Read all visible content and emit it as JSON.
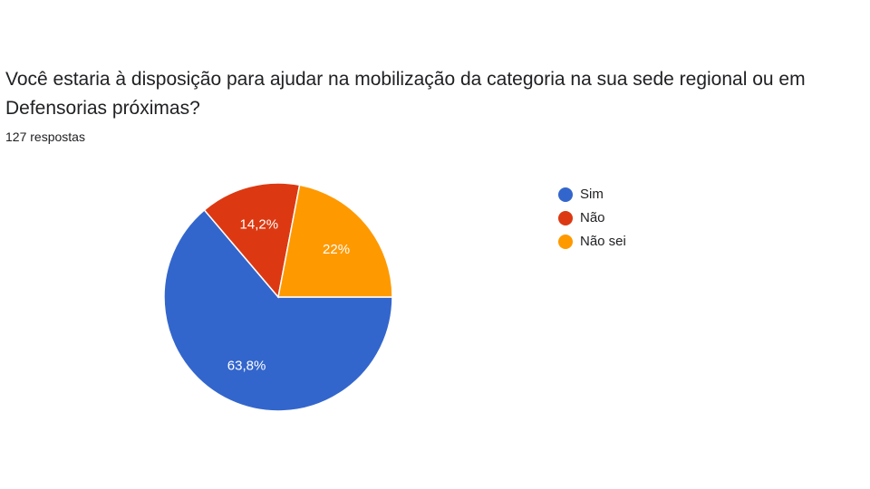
{
  "question": {
    "title": "Você estaria à disposição para ajudar na mobilização da categoria na sua sede regional ou em Defensorias próximas?",
    "responses": "127 respostas"
  },
  "chart_data": {
    "type": "pie",
    "categories": [
      "Sim",
      "Não",
      "Não sei"
    ],
    "values": [
      63.8,
      14.2,
      22
    ],
    "data_labels": [
      "63,8%",
      "14,2%",
      "22%"
    ],
    "colors": [
      "#3366cc",
      "#dc3912",
      "#ff9900"
    ],
    "legend_position": "right",
    "start": "3 o'clock, clockwise"
  }
}
